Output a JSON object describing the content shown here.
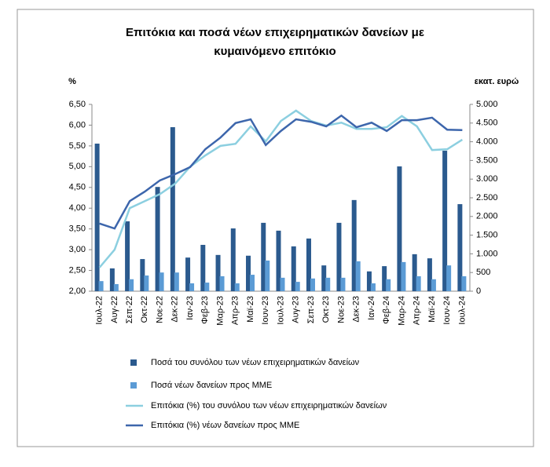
{
  "chart_data": {
    "type": "bar",
    "title_lines": [
      "Επιτόκια και ποσά νέων επιχειρηματικών δανείων με",
      "κυμαινόμενο επιτόκιο"
    ],
    "y_label": "%",
    "y2_label": "εκατ. ευρώ",
    "categories": [
      "Ιουλ-22",
      "Αυγ-22",
      "Σεπ-22",
      "Οκτ-22",
      "Νοε-22",
      "Δεκ-22",
      "Ιαν-23",
      "Φεβ-23",
      "Μαρ-23",
      "Απρ-23",
      "Μαϊ-23",
      "Ιουν-23",
      "Ιουλ-23",
      "Αυγ-23",
      "Σεπ-23",
      "Οκτ-23",
      "Νοε-23",
      "Δεκ-23",
      "Ιαν-24",
      "Φεβ-24",
      "Μαρ-24",
      "Απρ-24",
      "Μαϊ-24",
      "Ιουν-24",
      "Ιουλ-24"
    ],
    "series": [
      {
        "name": "Ποσά του συνόλου των νέων επιχειρηματικών δανείων",
        "type": "bar",
        "axis": "y2",
        "color": "#2b5a8e",
        "values": [
          3950,
          610,
          1870,
          860,
          2790,
          4390,
          900,
          1240,
          970,
          1680,
          950,
          1830,
          1620,
          1200,
          1410,
          690,
          1830,
          2440,
          530,
          670,
          3340,
          990,
          880,
          3760,
          2330
        ]
      },
      {
        "name": "Ποσά νέων δανείων προς ΜΜΕ",
        "type": "bar",
        "axis": "y2",
        "color": "#5b9bd5",
        "values": [
          270,
          190,
          320,
          420,
          500,
          500,
          210,
          230,
          400,
          210,
          440,
          820,
          360,
          250,
          340,
          360,
          360,
          800,
          210,
          320,
          780,
          400,
          320,
          690,
          400
        ]
      },
      {
        "name": "Επιτόκια (%) του συνόλου των νέων επιχειρηματικών δανείων",
        "type": "line",
        "color": "#8ccfe0",
        "values": [
          2.57,
          3.0,
          4.0,
          4.17,
          4.34,
          4.59,
          5.0,
          5.27,
          5.5,
          5.55,
          5.97,
          5.61,
          6.1,
          6.35,
          6.1,
          5.99,
          6.06,
          5.91,
          5.91,
          5.95,
          6.22,
          5.97,
          5.4,
          5.42,
          5.65
        ]
      },
      {
        "name": "Επιτόκια (%) νέων δανείων προς ΜΜΕ",
        "type": "line",
        "color": "#3d66ac",
        "values": [
          3.63,
          3.51,
          4.17,
          4.4,
          4.67,
          4.82,
          4.99,
          5.42,
          5.7,
          6.05,
          6.14,
          5.52,
          5.86,
          6.14,
          6.08,
          5.97,
          6.23,
          5.95,
          6.06,
          5.86,
          6.12,
          6.12,
          6.18,
          5.89,
          5.88
        ]
      }
    ],
    "ylim": [
      2,
      6.5
    ],
    "yticks": [
      {
        "value": 2,
        "label": "2,00"
      },
      {
        "value": 2.5,
        "label": "2,50"
      },
      {
        "value": 3,
        "label": "3,00"
      },
      {
        "value": 3.5,
        "label": "3,50"
      },
      {
        "value": 4,
        "label": "4,00"
      },
      {
        "value": 4.5,
        "label": "4,50"
      },
      {
        "value": 5,
        "label": "5,00"
      },
      {
        "value": 5.5,
        "label": "5,50"
      },
      {
        "value": 6,
        "label": "6,00"
      },
      {
        "value": 6.5,
        "label": "6,50"
      }
    ],
    "y2lim": [
      0,
      5000
    ],
    "y2ticks": [
      0,
      {
        "value": 500,
        "label": "500"
      },
      {
        "value": 1000,
        "label": "1.000"
      },
      {
        "value": 1500,
        "label": "1.500"
      },
      {
        "value": 2000,
        "label": "2.000"
      },
      {
        "value": 2500,
        "label": "2.500"
      },
      {
        "value": 3000,
        "label": "3.000"
      },
      {
        "value": 3500,
        "label": "3.500"
      },
      {
        "value": 4000,
        "label": "4.000"
      },
      {
        "value": 4500,
        "label": "4.500"
      },
      {
        "value": 5000,
        "label": "5.000"
      }
    ]
  }
}
